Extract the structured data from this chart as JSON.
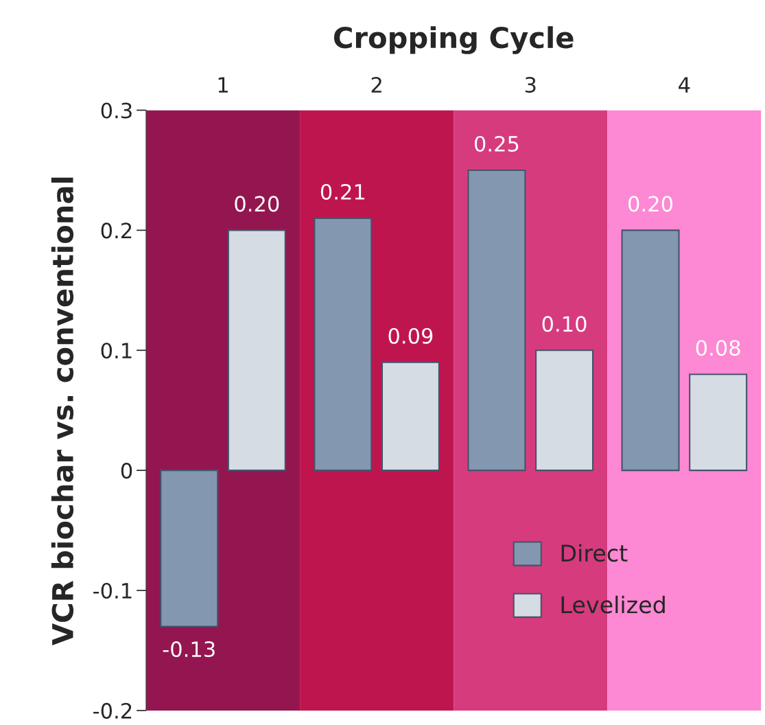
{
  "chart_data": {
    "type": "bar",
    "xlabel": "Cropping Cycle",
    "ylabel": "VCR biochar vs. conventional",
    "categories": [
      "1",
      "2",
      "3",
      "4"
    ],
    "series": [
      {
        "name": "Direct",
        "color": "#8497b0",
        "values": [
          -0.13,
          0.21,
          0.25,
          0.2
        ],
        "value_labels": [
          "-0.13",
          "0.21",
          "0.25",
          "0.20"
        ]
      },
      {
        "name": "Levelized",
        "color": "#d6dce4",
        "values": [
          0.2,
          0.09,
          0.1,
          0.08
        ],
        "value_labels": [
          "0.20",
          "0.09",
          "0.10",
          "0.08"
        ]
      }
    ],
    "bands": [
      {
        "axis": "x",
        "from": "1",
        "to": "1",
        "color": "#941650"
      },
      {
        "axis": "x",
        "from": "2",
        "to": "2",
        "color": "#bf154f"
      },
      {
        "axis": "x",
        "from": "3",
        "to": "3",
        "color": "#d63b7e"
      },
      {
        "axis": "x",
        "from": "4",
        "to": "4",
        "color": "#fd88d3"
      }
    ],
    "ylim": [
      -0.2,
      0.3
    ],
    "yticks": [
      -0.2,
      -0.1,
      0,
      0.1,
      0.2,
      0.3
    ],
    "grid": false,
    "legend": "bottom right"
  }
}
